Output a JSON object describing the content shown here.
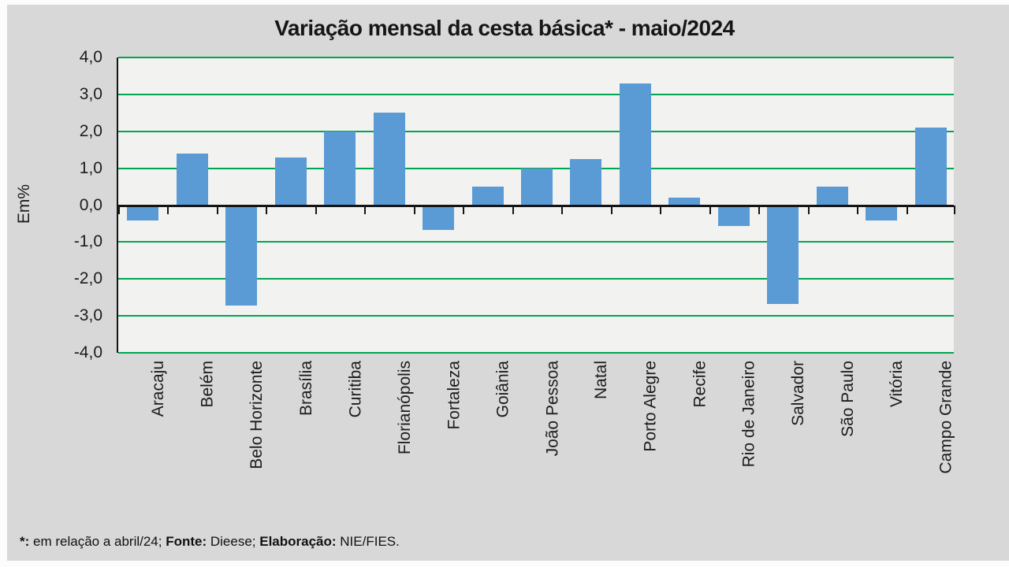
{
  "chart_data": {
    "type": "bar",
    "title": "Variação mensal da cesta básica* - maio/2024",
    "ylabel": "Em%",
    "xlabel": "",
    "ylim": [
      -4.0,
      4.0
    ],
    "ytick_step": 1.0,
    "ytick_labels": [
      "4,0",
      "3,0",
      "2,0",
      "1,0",
      "0,0",
      "-1,0",
      "-2,0",
      "-3,0",
      "-4,0"
    ],
    "grid": true,
    "legend_position": "none",
    "categories": [
      "Aracaju",
      "Belém",
      "Belo Horizonte",
      "Brasília",
      "Curitiba",
      "Florianópolis",
      "Fortaleza",
      "Goiânia",
      "João Pessoa",
      "Natal",
      "Porto Alegre",
      "Recife",
      "Rio de Janeiro",
      "Salvador",
      "São Paulo",
      "Vitória",
      "Campo Grande"
    ],
    "values": [
      -0.4,
      1.4,
      -2.7,
      1.3,
      2.0,
      2.5,
      -0.65,
      0.5,
      1.0,
      1.25,
      3.3,
      0.2,
      -0.55,
      -2.65,
      0.5,
      -0.4,
      2.1
    ],
    "bar_color": "#5b9bd5",
    "gridline_color": "#00a651",
    "axis_color": "#151515",
    "plot_background": "#f2f2f0",
    "outer_background": "#d8d8d8"
  },
  "footer": {
    "segments": [
      {
        "text": "*:",
        "bold": true
      },
      {
        "text": " em relação a abril/24; ",
        "bold": false
      },
      {
        "text": "Fonte:",
        "bold": true
      },
      {
        "text": " Dieese; ",
        "bold": false
      },
      {
        "text": "Elaboração:",
        "bold": true
      },
      {
        "text": " NIE/FIES.",
        "bold": false
      }
    ]
  }
}
